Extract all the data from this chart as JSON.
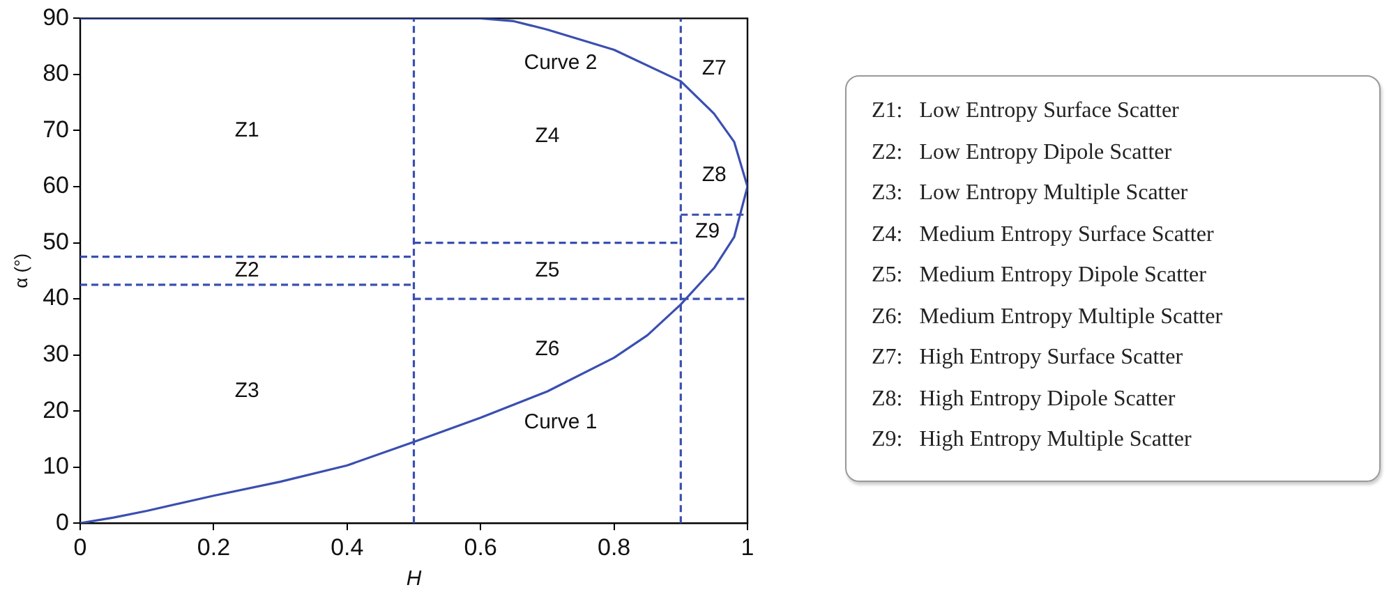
{
  "chart_data": {
    "type": "line",
    "xlabel": "H",
    "ylabel": "α (°)",
    "xlim": [
      0,
      1
    ],
    "ylim": [
      0,
      90
    ],
    "xticks": [
      0,
      0.2,
      0.4,
      0.6,
      0.8,
      1
    ],
    "yticks": [
      0,
      10,
      20,
      30,
      40,
      50,
      60,
      70,
      80,
      90
    ],
    "grid": false,
    "legend": false,
    "marker": "none",
    "series": [
      {
        "color": "#3a4fb0",
        "line_style": "solid",
        "x": [
          0,
          0.05,
          0.1,
          0.2,
          0.3,
          0.4,
          0.5,
          0.6,
          0.7,
          0.8,
          0.85,
          0.9,
          0.95,
          0.98,
          1
        ],
        "values": [
          0,
          1,
          2.2,
          4.9,
          7.4,
          10.3,
          14.5,
          18.8,
          23.5,
          29.5,
          33.5,
          39,
          45.5,
          51,
          60
        ]
      },
      {
        "color": "#3a4fb0",
        "line_style": "solid",
        "x": [
          0,
          0.6,
          0.65,
          0.7,
          0.8,
          0.9,
          0.95,
          0.98,
          1
        ],
        "values": [
          90,
          90,
          89.5,
          88,
          84.4,
          78.8,
          73,
          68,
          60
        ]
      },
      {
        "color": "#3a4fb0",
        "line_style": "dashed",
        "x": [
          0.5,
          0.5
        ],
        "values": [
          0,
          90
        ]
      },
      {
        "color": "#3a4fb0",
        "line_style": "dashed",
        "x": [
          0.9,
          0.9
        ],
        "values": [
          0,
          90
        ]
      },
      {
        "color": "#3a4fb0",
        "line_style": "dashed",
        "x": [
          0,
          0.5
        ],
        "values": [
          47.5,
          47.5
        ]
      },
      {
        "color": "#3a4fb0",
        "line_style": "dashed",
        "x": [
          0,
          0.5
        ],
        "values": [
          42.5,
          42.5
        ]
      },
      {
        "color": "#3a4fb0",
        "line_style": "dashed",
        "x": [
          0.5,
          0.9
        ],
        "values": [
          50,
          50
        ]
      },
      {
        "color": "#3a4fb0",
        "line_style": "dashed",
        "x": [
          0.5,
          1
        ],
        "values": [
          40,
          40
        ]
      },
      {
        "color": "#3a4fb0",
        "line_style": "dashed",
        "x": [
          0.9,
          1
        ],
        "values": [
          55,
          55
        ]
      }
    ],
    "annotations": [
      "Z1",
      "Z2",
      "Z3",
      "Z4",
      "Z5",
      "Z6",
      "Z7",
      "Z8",
      "Z9",
      "Curve 2",
      "Curve 1",
      "Z1:   Low Entropy Surface Scatter",
      "Z2:   Low Entropy Dipole Scatter",
      "Z3:   Low Entropy Multiple Scatter",
      "Z4:   Medium Entropy Surface Scatter",
      "Z5:   Medium Entropy Dipole Scatter",
      "Z6:   Medium Entropy Multiple Scatter",
      "Z7:   High Entropy Surface Scatter",
      "Z8:   High Entropy Dipole Scatter",
      "Z9:   High Entropy Multiple Scatter"
    ]
  }
}
